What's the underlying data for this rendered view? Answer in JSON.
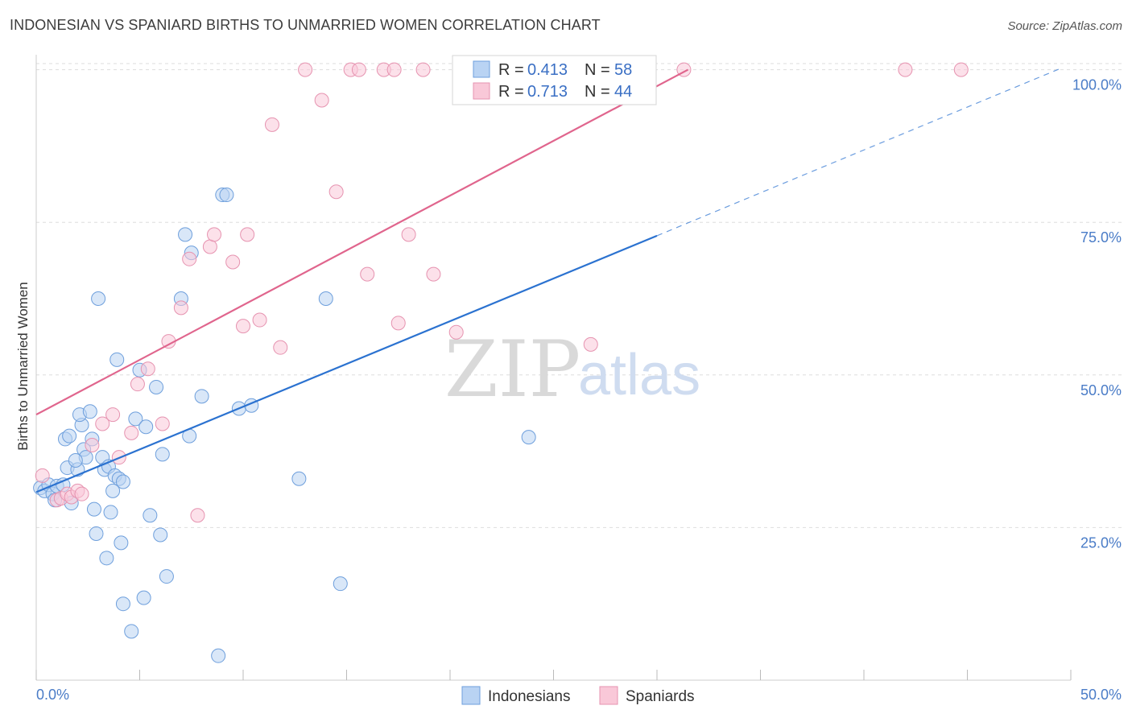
{
  "title": "INDONESIAN VS SPANIARD BIRTHS TO UNMARRIED WOMEN CORRELATION CHART",
  "source": "Source: ZipAtlas.com",
  "watermark": {
    "zip": "ZIP",
    "atlas": "atlas"
  },
  "colors": {
    "blue_fill": "#b9d3f3",
    "blue_stroke": "#6e9fdc",
    "blue_line": "#2b72d0",
    "pink_fill": "#f9c8d8",
    "pink_stroke": "#e693b0",
    "pink_line": "#e0658d",
    "axis_text": "#4a7cc7",
    "grid": "#dddddd"
  },
  "legend": {
    "rows": [
      {
        "r_label": "R = ",
        "r_value": "0.413",
        "n_label": "N = ",
        "n_value": "58",
        "color": "blue"
      },
      {
        "r_label": "R = ",
        "r_value": "0.713",
        "n_label": "N = ",
        "n_value": "44",
        "color": "pink"
      }
    ]
  },
  "bottom_legend": [
    "Indonesians",
    "Spaniards"
  ],
  "chart_data": {
    "type": "scatter",
    "title": "INDONESIAN VS SPANIARD BIRTHS TO UNMARRIED WOMEN CORRELATION CHART",
    "xlabel": "",
    "ylabel": "Births to Unmarried Women",
    "xlim": [
      0,
      50
    ],
    "ylim": [
      0,
      101
    ],
    "x_tick_labels": [
      "0.0%",
      "50.0%"
    ],
    "y_ticks": [
      25,
      50,
      75,
      100
    ],
    "y_tick_labels": [
      "25.0%",
      "50.0%",
      "75.0%",
      "100.0%"
    ],
    "series": [
      {
        "name": "Indonesians",
        "color": "blue",
        "R": 0.413,
        "N": 58,
        "trend": {
          "x0": 0,
          "y0": 30.8,
          "x1": 30,
          "y1": 72.8,
          "dashed_to_x": 49.5,
          "dashed_to_y": 100.2
        },
        "points": [
          [
            0.2,
            31.5
          ],
          [
            0.4,
            31.0
          ],
          [
            0.6,
            32.0
          ],
          [
            0.8,
            30.5
          ],
          [
            1.0,
            31.8
          ],
          [
            1.3,
            32.0
          ],
          [
            0.9,
            29.5
          ],
          [
            1.5,
            34.8
          ],
          [
            1.7,
            29.0
          ],
          [
            1.4,
            39.5
          ],
          [
            1.6,
            40.0
          ],
          [
            2.0,
            34.5
          ],
          [
            2.2,
            41.8
          ],
          [
            2.1,
            43.5
          ],
          [
            2.3,
            37.8
          ],
          [
            2.4,
            36.5
          ],
          [
            1.9,
            36.0
          ],
          [
            2.6,
            44.0
          ],
          [
            2.7,
            39.5
          ],
          [
            2.8,
            28.0
          ],
          [
            2.9,
            24.0
          ],
          [
            3.2,
            36.5
          ],
          [
            3.3,
            34.5
          ],
          [
            3.5,
            35.0
          ],
          [
            3.4,
            20.0
          ],
          [
            3.6,
            27.5
          ],
          [
            3.7,
            31.0
          ],
          [
            3.8,
            33.5
          ],
          [
            4.0,
            33.0
          ],
          [
            4.2,
            32.5
          ],
          [
            3.9,
            52.5
          ],
          [
            4.1,
            22.5
          ],
          [
            4.2,
            12.5
          ],
          [
            4.8,
            42.8
          ],
          [
            4.6,
            8.0
          ],
          [
            5.0,
            50.8
          ],
          [
            5.3,
            41.5
          ],
          [
            5.5,
            27.0
          ],
          [
            5.8,
            48.0
          ],
          [
            6.0,
            23.8
          ],
          [
            6.1,
            37.0
          ],
          [
            6.3,
            17.0
          ],
          [
            5.2,
            13.5
          ],
          [
            3.0,
            62.5
          ],
          [
            7.0,
            62.5
          ],
          [
            7.2,
            73.0
          ],
          [
            7.4,
            40.0
          ],
          [
            7.5,
            70.0
          ],
          [
            8.0,
            46.5
          ],
          [
            9.0,
            79.5
          ],
          [
            9.2,
            79.5
          ],
          [
            8.8,
            4.0
          ],
          [
            9.8,
            44.5
          ],
          [
            10.4,
            45.0
          ],
          [
            12.7,
            33.0
          ],
          [
            14.0,
            62.5
          ],
          [
            14.7,
            15.8
          ],
          [
            23.8,
            39.8
          ]
        ]
      },
      {
        "name": "Spaniards",
        "color": "pink",
        "R": 0.713,
        "N": 44,
        "trend": {
          "x0": 0,
          "y0": 43.5,
          "x1": 31.5,
          "y1": 100.0
        },
        "points": [
          [
            0.3,
            33.5
          ],
          [
            1.0,
            29.5
          ],
          [
            1.2,
            29.8
          ],
          [
            1.5,
            30.5
          ],
          [
            1.7,
            30.0
          ],
          [
            2.0,
            31.0
          ],
          [
            2.2,
            30.5
          ],
          [
            2.7,
            38.5
          ],
          [
            3.2,
            42.0
          ],
          [
            3.7,
            43.5
          ],
          [
            4.0,
            36.5
          ],
          [
            4.6,
            40.5
          ],
          [
            4.9,
            48.5
          ],
          [
            5.4,
            51.0
          ],
          [
            6.1,
            42.0
          ],
          [
            6.4,
            55.5
          ],
          [
            7.0,
            61.0
          ],
          [
            7.4,
            69.0
          ],
          [
            7.8,
            27.0
          ],
          [
            8.4,
            71.0
          ],
          [
            8.6,
            73.0
          ],
          [
            9.5,
            68.5
          ],
          [
            10.2,
            73.0
          ],
          [
            10.0,
            58.0
          ],
          [
            10.8,
            59.0
          ],
          [
            11.8,
            54.5
          ],
          [
            11.4,
            91.0
          ],
          [
            13.0,
            100.0
          ],
          [
            13.8,
            95.0
          ],
          [
            14.5,
            80.0
          ],
          [
            15.2,
            100.0
          ],
          [
            15.6,
            100.0
          ],
          [
            16.0,
            66.5
          ],
          [
            16.8,
            100.0
          ],
          [
            17.3,
            100.0
          ],
          [
            17.5,
            58.5
          ],
          [
            18.0,
            73.0
          ],
          [
            18.7,
            100.0
          ],
          [
            19.2,
            66.5
          ],
          [
            20.3,
            57.0
          ],
          [
            26.8,
            55.0
          ],
          [
            31.3,
            100.0
          ],
          [
            42.0,
            100.0
          ],
          [
            44.7,
            100.0
          ]
        ]
      }
    ]
  }
}
